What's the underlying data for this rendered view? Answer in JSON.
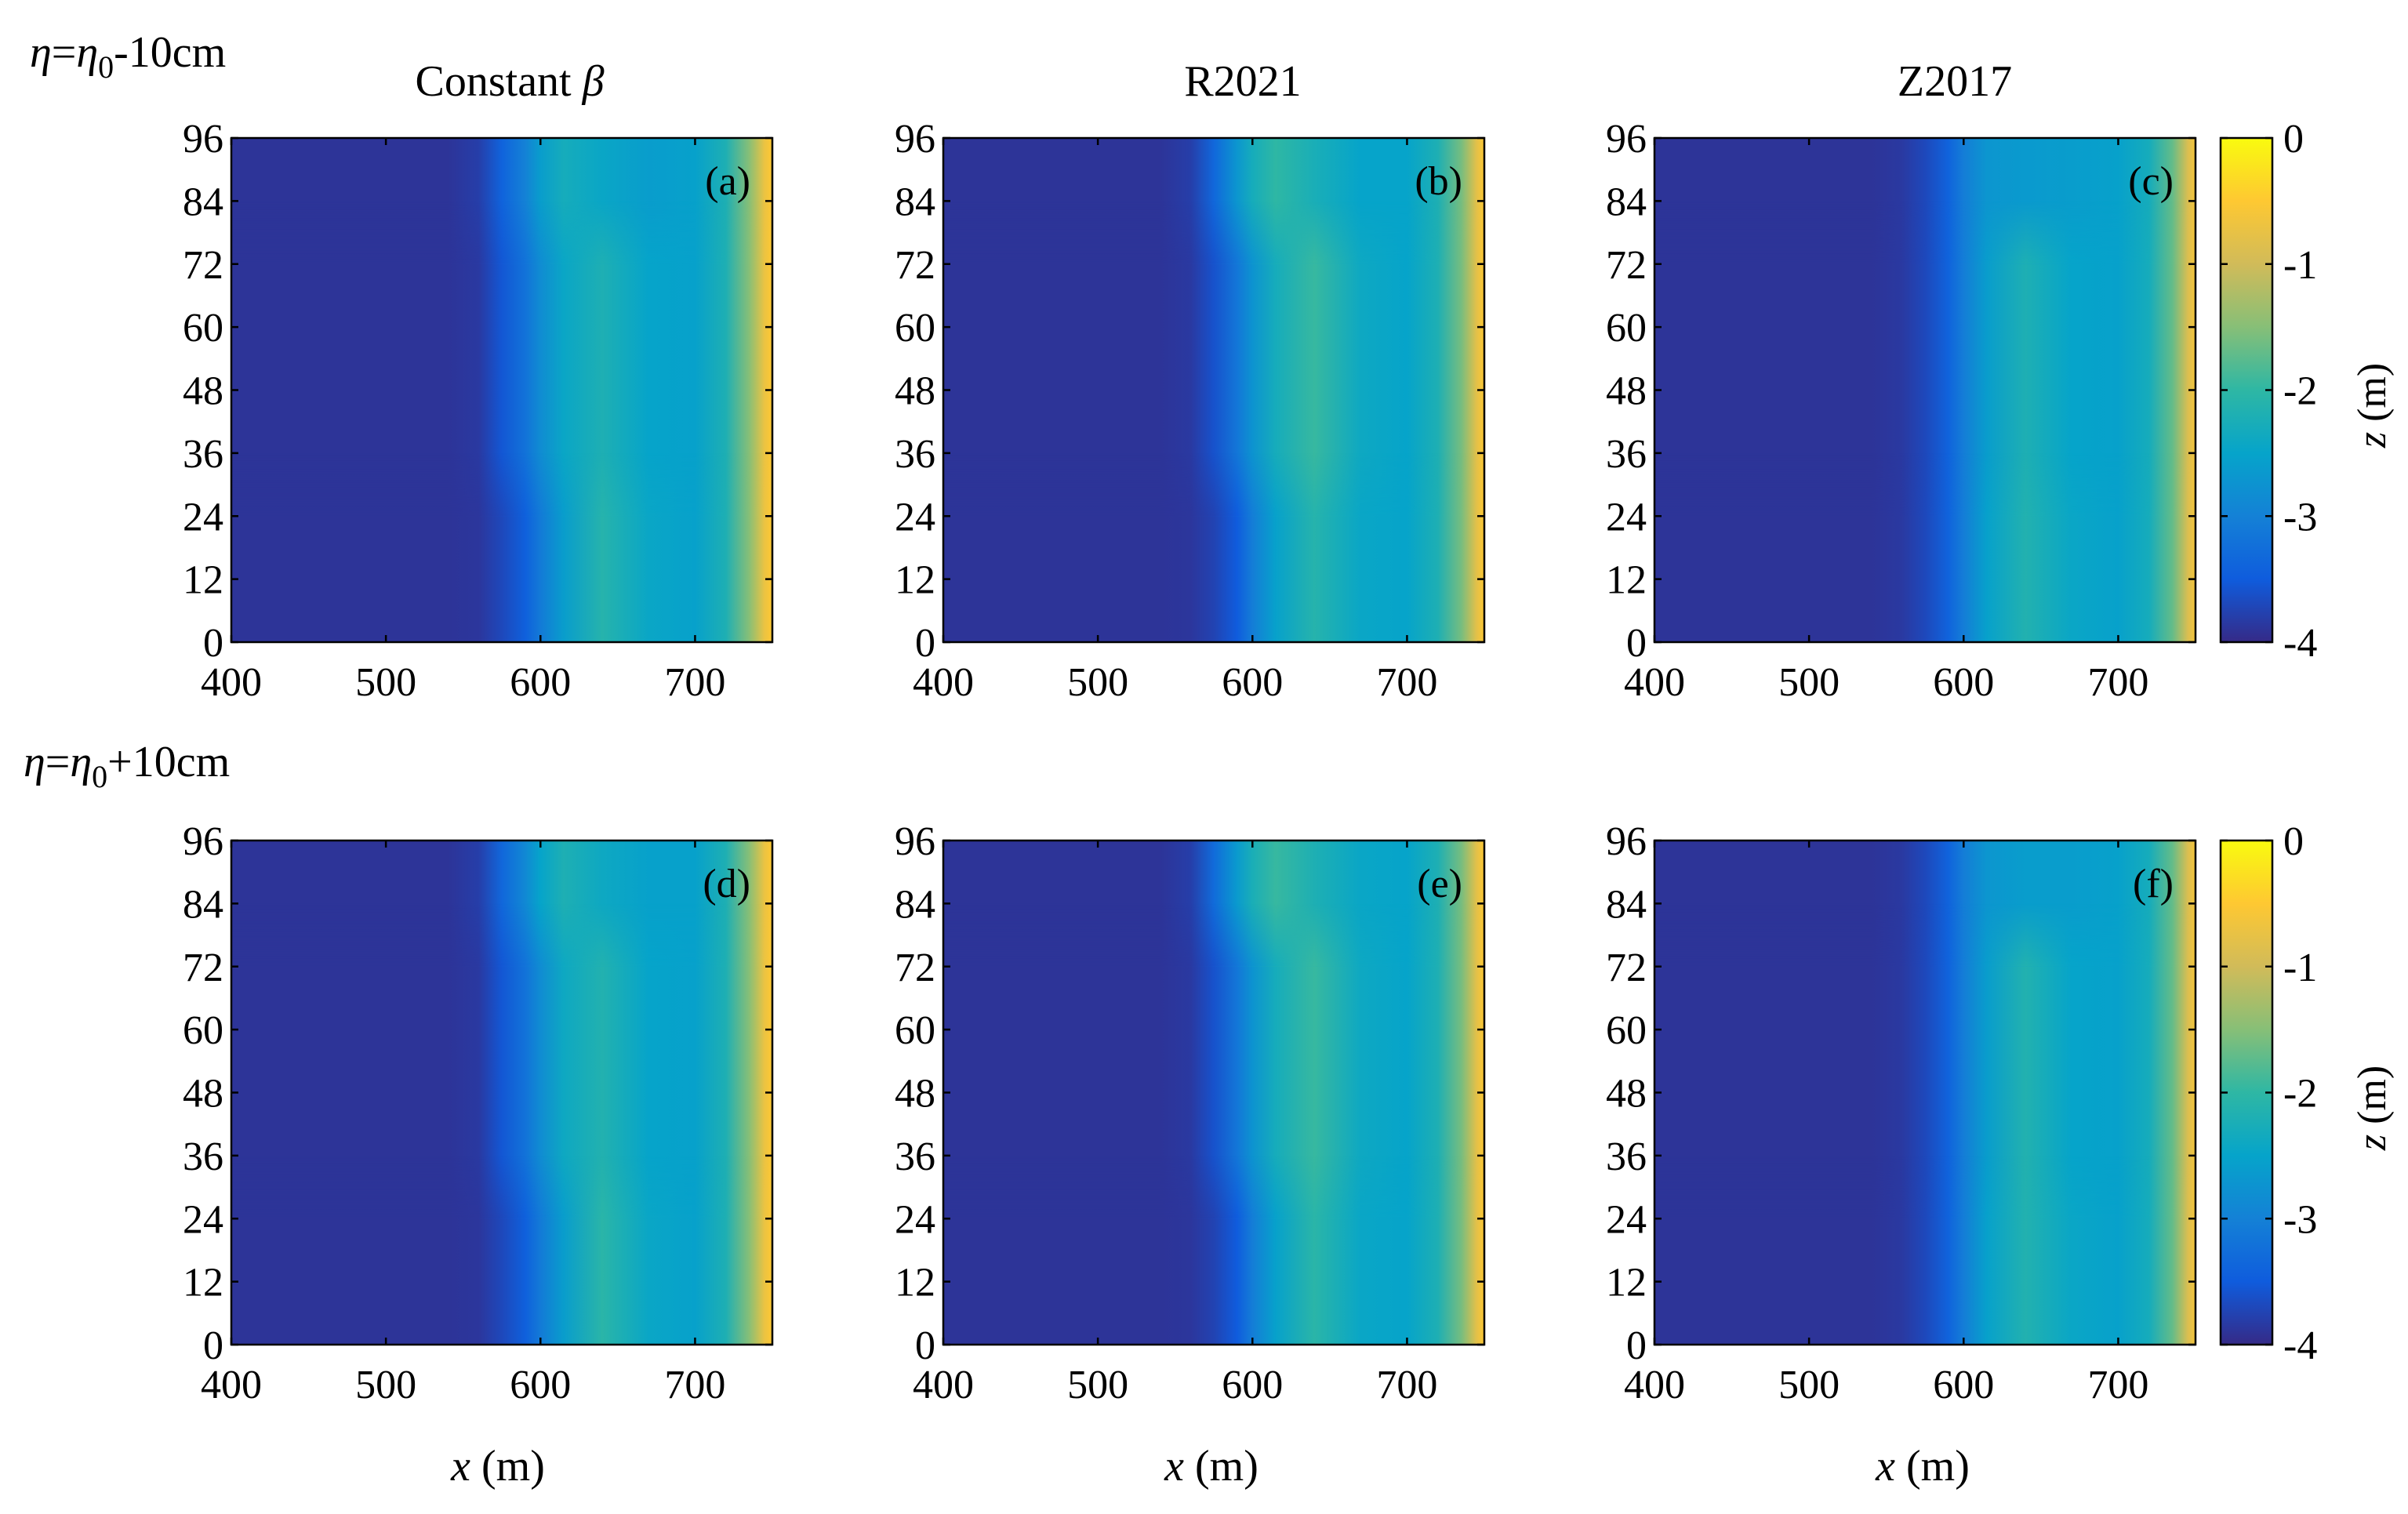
{
  "figure": {
    "row_labels": [
      {
        "eta": "η",
        "eq": "=",
        "eta0": "η",
        "sub": "0",
        "offset": "-10cm"
      },
      {
        "eta": "η",
        "eq": "=",
        "eta0": "η",
        "sub": "0",
        "offset": "+10cm"
      }
    ],
    "column_titles": [
      {
        "text": "Constant ",
        "symbol": "β"
      },
      {
        "text": "R2021",
        "symbol": ""
      },
      {
        "text": "Z2017",
        "symbol": ""
      }
    ],
    "x_axis_label": {
      "var": "x",
      "unit": " (m)"
    },
    "colorbar": {
      "label_var": "z",
      "label_unit": " (m)",
      "range": [
        -4,
        0
      ],
      "ticks": [
        0,
        -1,
        -2,
        -3,
        -4
      ],
      "colormap": "parula",
      "colors": [
        "#352a87",
        "#0f5cdd",
        "#1481d6",
        "#06a4ca",
        "#2eb7a4",
        "#87bf77",
        "#d1bb59",
        "#fec832",
        "#f9fb0e"
      ]
    }
  },
  "chart_data": [
    {
      "type": "heatmap",
      "panel_label": "(a)",
      "row": "η=η0-10cm",
      "column": "Constant β",
      "xlabel": "",
      "ylabel": "",
      "zlabel": "z (m)",
      "xlim": [
        400,
        750
      ],
      "ylim": [
        0,
        96
      ],
      "zlim": [
        -4,
        0
      ],
      "xticks": [
        400,
        500,
        600,
        700
      ],
      "yticks": [
        0,
        12,
        24,
        36,
        48,
        60,
        72,
        84,
        96
      ],
      "x": [
        400,
        540,
        560,
        575,
        590,
        600,
        615,
        640,
        670,
        700,
        720,
        735,
        745,
        750
      ],
      "profiles": [
        {
          "y": 96,
          "z": [
            -3.9,
            -3.9,
            -3.8,
            -3.4,
            -3.0,
            -2.6,
            -2.3,
            -2.45,
            -2.6,
            -2.55,
            -2.2,
            -1.5,
            -0.7,
            -0.5
          ]
        },
        {
          "y": 48,
          "z": [
            -3.9,
            -3.9,
            -3.85,
            -3.55,
            -3.2,
            -2.85,
            -2.45,
            -2.2,
            -2.5,
            -2.55,
            -2.2,
            -1.5,
            -0.7,
            -0.5
          ]
        },
        {
          "y": 0,
          "z": [
            -3.9,
            -3.9,
            -3.88,
            -3.7,
            -3.45,
            -3.1,
            -2.6,
            -2.1,
            -2.45,
            -2.55,
            -2.2,
            -1.5,
            -0.7,
            -0.5
          ]
        }
      ]
    },
    {
      "type": "heatmap",
      "panel_label": "(b)",
      "row": "η=η0-10cm",
      "column": "R2021",
      "xlabel": "",
      "ylabel": "",
      "zlabel": "z (m)",
      "xlim": [
        400,
        750
      ],
      "ylim": [
        0,
        96
      ],
      "zlim": [
        -4,
        0
      ],
      "xticks": [
        400,
        500,
        600,
        700
      ],
      "yticks": [
        0,
        12,
        24,
        36,
        48,
        60,
        72,
        84,
        96
      ],
      "x": [
        400,
        540,
        560,
        575,
        590,
        600,
        615,
        640,
        670,
        700,
        720,
        735,
        745,
        750
      ],
      "profiles": [
        {
          "y": 96,
          "z": [
            -3.9,
            -3.9,
            -3.8,
            -3.35,
            -2.7,
            -2.3,
            -2.0,
            -2.25,
            -2.5,
            -2.5,
            -2.2,
            -1.6,
            -0.8,
            -0.5
          ]
        },
        {
          "y": 48,
          "z": [
            -3.9,
            -3.9,
            -3.85,
            -3.6,
            -3.15,
            -2.75,
            -2.3,
            -1.95,
            -2.4,
            -2.5,
            -2.2,
            -1.6,
            -0.8,
            -0.5
          ]
        },
        {
          "y": 0,
          "z": [
            -3.9,
            -3.9,
            -3.88,
            -3.75,
            -3.5,
            -3.05,
            -2.55,
            -2.1,
            -2.45,
            -2.5,
            -2.2,
            -1.6,
            -0.8,
            -0.5
          ]
        }
      ]
    },
    {
      "type": "heatmap",
      "panel_label": "(c)",
      "row": "η=η0-10cm",
      "column": "Z2017",
      "xlabel": "",
      "ylabel": "",
      "zlabel": "z (m)",
      "xlim": [
        400,
        750
      ],
      "ylim": [
        0,
        96
      ],
      "zlim": [
        -4,
        0
      ],
      "xticks": [
        400,
        500,
        600,
        700
      ],
      "yticks": [
        0,
        12,
        24,
        36,
        48,
        60,
        72,
        84,
        96
      ],
      "x": [
        400,
        540,
        560,
        575,
        590,
        600,
        615,
        640,
        670,
        700,
        720,
        735,
        745,
        750
      ],
      "profiles": [
        {
          "y": 96,
          "z": [
            -3.9,
            -3.9,
            -3.85,
            -3.7,
            -3.4,
            -3.05,
            -2.7,
            -2.65,
            -2.6,
            -2.55,
            -2.3,
            -1.7,
            -0.9,
            -0.6
          ]
        },
        {
          "y": 48,
          "z": [
            -3.9,
            -3.9,
            -3.85,
            -3.7,
            -3.4,
            -3.05,
            -2.6,
            -2.2,
            -2.5,
            -2.55,
            -2.3,
            -1.7,
            -0.9,
            -0.6
          ]
        },
        {
          "y": 0,
          "z": [
            -3.9,
            -3.9,
            -3.85,
            -3.7,
            -3.4,
            -3.05,
            -2.55,
            -2.15,
            -2.45,
            -2.55,
            -2.3,
            -1.7,
            -0.9,
            -0.6
          ]
        }
      ]
    },
    {
      "type": "heatmap",
      "panel_label": "(d)",
      "row": "η=η0+10cm",
      "column": "Constant β",
      "xlabel": "x (m)",
      "ylabel": "",
      "zlabel": "z (m)",
      "xlim": [
        400,
        750
      ],
      "ylim": [
        0,
        96
      ],
      "zlim": [
        -4,
        0
      ],
      "xticks": [
        400,
        500,
        600,
        700
      ],
      "yticks": [
        0,
        12,
        24,
        36,
        48,
        60,
        72,
        84,
        96
      ],
      "x": [
        400,
        540,
        560,
        575,
        590,
        600,
        615,
        640,
        670,
        700,
        720,
        735,
        745,
        750
      ],
      "profiles": [
        {
          "y": 96,
          "z": [
            -3.9,
            -3.9,
            -3.8,
            -3.35,
            -2.9,
            -2.5,
            -2.2,
            -2.4,
            -2.55,
            -2.55,
            -2.2,
            -1.5,
            -0.7,
            -0.5
          ]
        },
        {
          "y": 48,
          "z": [
            -3.9,
            -3.9,
            -3.85,
            -3.55,
            -3.2,
            -2.85,
            -2.4,
            -2.15,
            -2.5,
            -2.55,
            -2.2,
            -1.5,
            -0.7,
            -0.5
          ]
        },
        {
          "y": 0,
          "z": [
            -3.9,
            -3.9,
            -3.88,
            -3.7,
            -3.45,
            -3.1,
            -2.6,
            -2.05,
            -2.45,
            -2.55,
            -2.2,
            -1.5,
            -0.7,
            -0.5
          ]
        }
      ]
    },
    {
      "type": "heatmap",
      "panel_label": "(e)",
      "row": "η=η0+10cm",
      "column": "R2021",
      "xlabel": "x (m)",
      "ylabel": "",
      "zlabel": "z (m)",
      "xlim": [
        400,
        750
      ],
      "ylim": [
        0,
        96
      ],
      "zlim": [
        -4,
        0
      ],
      "xticks": [
        400,
        500,
        600,
        700
      ],
      "yticks": [
        0,
        12,
        24,
        36,
        48,
        60,
        72,
        84,
        96
      ],
      "x": [
        400,
        540,
        560,
        575,
        590,
        600,
        615,
        640,
        670,
        700,
        720,
        735,
        745,
        750
      ],
      "profiles": [
        {
          "y": 96,
          "z": [
            -3.9,
            -3.9,
            -3.8,
            -3.3,
            -2.65,
            -2.25,
            -1.95,
            -2.2,
            -2.45,
            -2.5,
            -2.2,
            -1.6,
            -0.8,
            -0.5
          ]
        },
        {
          "y": 48,
          "z": [
            -3.9,
            -3.9,
            -3.85,
            -3.6,
            -3.15,
            -2.75,
            -2.3,
            -1.95,
            -2.4,
            -2.5,
            -2.2,
            -1.6,
            -0.8,
            -0.5
          ]
        },
        {
          "y": 0,
          "z": [
            -3.9,
            -3.9,
            -3.88,
            -3.75,
            -3.5,
            -3.05,
            -2.55,
            -2.05,
            -2.45,
            -2.5,
            -2.2,
            -1.6,
            -0.8,
            -0.5
          ]
        }
      ]
    },
    {
      "type": "heatmap",
      "panel_label": "(f)",
      "row": "η=η0+10cm",
      "column": "Z2017",
      "xlabel": "x (m)",
      "ylabel": "",
      "zlabel": "z (m)",
      "xlim": [
        400,
        750
      ],
      "ylim": [
        0,
        96
      ],
      "zlim": [
        -4,
        0
      ],
      "xticks": [
        400,
        500,
        600,
        700
      ],
      "yticks": [
        0,
        12,
        24,
        36,
        48,
        60,
        72,
        84,
        96
      ],
      "x": [
        400,
        540,
        560,
        575,
        590,
        600,
        615,
        640,
        670,
        700,
        720,
        735,
        745,
        750
      ],
      "profiles": [
        {
          "y": 96,
          "z": [
            -3.9,
            -3.9,
            -3.85,
            -3.7,
            -3.4,
            -3.05,
            -2.7,
            -2.6,
            -2.6,
            -2.55,
            -2.3,
            -1.7,
            -0.9,
            -0.6
          ]
        },
        {
          "y": 48,
          "z": [
            -3.9,
            -3.9,
            -3.85,
            -3.7,
            -3.4,
            -3.05,
            -2.6,
            -2.15,
            -2.5,
            -2.55,
            -2.3,
            -1.7,
            -0.9,
            -0.6
          ]
        },
        {
          "y": 0,
          "z": [
            -3.9,
            -3.9,
            -3.85,
            -3.7,
            -3.4,
            -3.05,
            -2.55,
            -2.15,
            -2.45,
            -2.55,
            -2.3,
            -1.7,
            -0.9,
            -0.6
          ]
        }
      ]
    }
  ]
}
